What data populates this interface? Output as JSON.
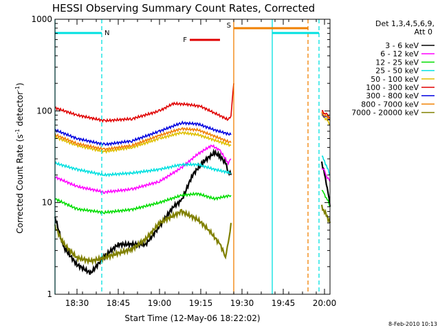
{
  "chart_data": {
    "type": "line",
    "title": "HESSI Observing Summary Count Rates, Corrected",
    "xlabel": "Start Time (12-May-06 18:22:02)",
    "ylabel": "Corrected Count Rate (s⁻¹ detector⁻¹)",
    "ylabel_parts": [
      "Corrected Count Rate (s",
      "-1",
      " detector",
      "-1",
      ")"
    ],
    "y_scale": "log",
    "ylim": [
      1,
      1000
    ],
    "xlim": [
      "18:22",
      "20:02"
    ],
    "x_ticks": [
      "18:30",
      "18:45",
      "19:00",
      "19:15",
      "19:30",
      "19:45",
      "20:00"
    ],
    "y_ticks": [
      "1",
      "10",
      "100",
      "1000"
    ],
    "legend_header": [
      "Det 1,3,4,5,6,9,",
      "Att 0"
    ],
    "legend_position": "right",
    "footer_date": "8-Feb-2010 10:13",
    "flags": [
      {
        "label": "N",
        "start": "18:22",
        "end": "18:39",
        "color": "#00e0e0"
      },
      {
        "label": "N",
        "start": "19:41",
        "end": "19:58",
        "color": "#00e0e0"
      },
      {
        "label": "F",
        "start": "19:11",
        "end": "19:22",
        "color": "#e00000"
      },
      {
        "label": "S",
        "start": "19:27",
        "end": "19:54",
        "color": "#f08000"
      }
    ],
    "vertical_lines": [
      {
        "time": "18:22",
        "style": "solid",
        "color": "#00e0e0"
      },
      {
        "time": "18:39",
        "style": "dashed",
        "color": "#00e0e0"
      },
      {
        "time": "19:27",
        "style": "solid",
        "color": "#f08000"
      },
      {
        "time": "19:41",
        "style": "solid",
        "color": "#00e0e0"
      },
      {
        "time": "19:54",
        "style": "dashed",
        "color": "#f08000"
      },
      {
        "time": "19:58",
        "style": "dashed",
        "color": "#00e0e0"
      }
    ],
    "series": [
      {
        "name": "3 - 6 keV",
        "color": "#000000",
        "segments": [
          {
            "times": [
              "18:22",
              "18:25",
              "18:30",
              "18:35",
              "18:40",
              "18:45",
              "18:50",
              "18:55",
              "19:00",
              "19:05",
              "19:08",
              "19:12",
              "19:16",
              "19:20",
              "19:22",
              "19:24",
              "19:25",
              "19:26"
            ],
            "values": [
              7,
              3.3,
              2.1,
              1.7,
              2.6,
              3.5,
              3.5,
              3.5,
              5.5,
              9,
              10.5,
              20,
              28,
              35,
              32,
              27,
              22,
              20
            ]
          },
          {
            "times": [
              "19:59",
              "20:00",
              "20:01",
              "20:02"
            ],
            "values": [
              28,
              20,
              15,
              9
            ]
          }
        ]
      },
      {
        "name": "6 - 12 keV",
        "color": "#ff00ff",
        "segments": [
          {
            "times": [
              "18:22",
              "18:30",
              "18:40",
              "18:50",
              "19:00",
              "19:08",
              "19:14",
              "19:19",
              "19:22",
              "19:25",
              "19:26"
            ],
            "values": [
              19,
              15,
              13,
              14,
              17,
              24,
              34,
              42,
              37,
              27,
              30
            ]
          },
          {
            "times": [
              "19:59",
              "20:00",
              "20:01",
              "20:02"
            ],
            "values": [
              24,
              22,
              19,
              17
            ]
          }
        ]
      },
      {
        "name": "12 - 25 keV",
        "color": "#00dd00",
        "segments": [
          {
            "times": [
              "18:22",
              "18:30",
              "18:40",
              "18:50",
              "19:00",
              "19:08",
              "19:14",
              "19:20",
              "19:26"
            ],
            "values": [
              11,
              8.5,
              7.8,
              8.4,
              10,
              12,
              12.5,
              11,
              12
            ]
          },
          {
            "times": [
              "19:59",
              "20:00",
              "20:01",
              "20:02"
            ],
            "values": [
              14,
              12,
              11,
              9
            ]
          }
        ]
      },
      {
        "name": "25 - 50 keV",
        "color": "#00e0e0",
        "segments": [
          {
            "times": [
              "18:22",
              "18:30",
              "18:40",
              "18:50",
              "19:00",
              "19:08",
              "19:14",
              "19:20",
              "19:26"
            ],
            "values": [
              27,
              23,
              20,
              21,
              23,
              26,
              26,
              23,
              21
            ]
          },
          {
            "times": [
              "19:59",
              "20:00",
              "20:01",
              "20:02"
            ],
            "values": [
              33,
              28,
              24,
              20
            ]
          }
        ]
      },
      {
        "name": "50 - 100 keV",
        "color": "#e0c000",
        "segments": [
          {
            "times": [
              "18:22",
              "18:30",
              "18:40",
              "18:50",
              "19:00",
              "19:08",
              "19:14",
              "19:20",
              "19:26"
            ],
            "values": [
              52,
              42,
              36,
              40,
              50,
              58,
              55,
              48,
              42
            ]
          },
          {
            "times": [
              "19:59",
              "20:00",
              "20:01",
              "20:02"
            ],
            "values": [
              90,
              85,
              78,
              72
            ]
          }
        ]
      },
      {
        "name": "100 - 300 keV",
        "color": "#e00000",
        "segments": [
          {
            "times": [
              "18:22",
              "18:30",
              "18:40",
              "18:50",
              "19:00",
              "19:05",
              "19:10",
              "19:15",
              "19:20",
              "19:25",
              "19:26",
              "19:27"
            ],
            "values": [
              108,
              90,
              78,
              82,
              100,
              120,
              118,
              112,
              95,
              80,
              90,
              200
            ]
          },
          {
            "times": [
              "19:59",
              "20:00",
              "20:01",
              "20:02"
            ],
            "values": [
              100,
              95,
              90,
              85
            ]
          }
        ]
      },
      {
        "name": "300 - 800 keV",
        "color": "#0000e0",
        "segments": [
          {
            "times": [
              "18:22",
              "18:30",
              "18:40",
              "18:50",
              "19:00",
              "19:08",
              "19:14",
              "19:20",
              "19:26"
            ],
            "values": [
              62,
              50,
              43,
              47,
              60,
              74,
              72,
              62,
              55
            ]
          },
          {
            "times": [
              "19:59",
              "20:00",
              "20:01",
              "20:02"
            ],
            "values": [
              92,
              88,
              84,
              80
            ]
          }
        ]
      },
      {
        "name": "800 - 7000 keV",
        "color": "#f08000",
        "segments": [
          {
            "times": [
              "18:22",
              "18:30",
              "18:40",
              "18:50",
              "19:00",
              "19:08",
              "19:14",
              "19:20",
              "19:26"
            ],
            "values": [
              55,
              44,
              38,
              42,
              54,
              64,
              62,
              53,
              45
            ]
          },
          {
            "times": [
              "19:59",
              "20:00",
              "20:01",
              "20:02"
            ],
            "values": [
              95,
              90,
              86,
              82
            ]
          }
        ]
      },
      {
        "name": "7000 - 20000 keV",
        "color": "#808000",
        "segments": [
          {
            "times": [
              "18:22",
              "18:25",
              "18:30",
              "18:35",
              "18:40",
              "18:45",
              "18:50",
              "18:55",
              "19:00",
              "19:08",
              "19:14",
              "19:18",
              "19:22",
              "19:24",
              "19:25",
              "19:26"
            ],
            "values": [
              5.5,
              3.6,
              2.5,
              2.3,
              2.5,
              2.8,
              3.1,
              4,
              6,
              8,
              6.5,
              5,
              3.5,
              2.6,
              3.5,
              6
            ]
          },
          {
            "times": [
              "19:59",
              "20:00",
              "20:01",
              "20:02"
            ],
            "values": [
              9,
              8,
              7,
              6
            ]
          }
        ]
      }
    ]
  }
}
